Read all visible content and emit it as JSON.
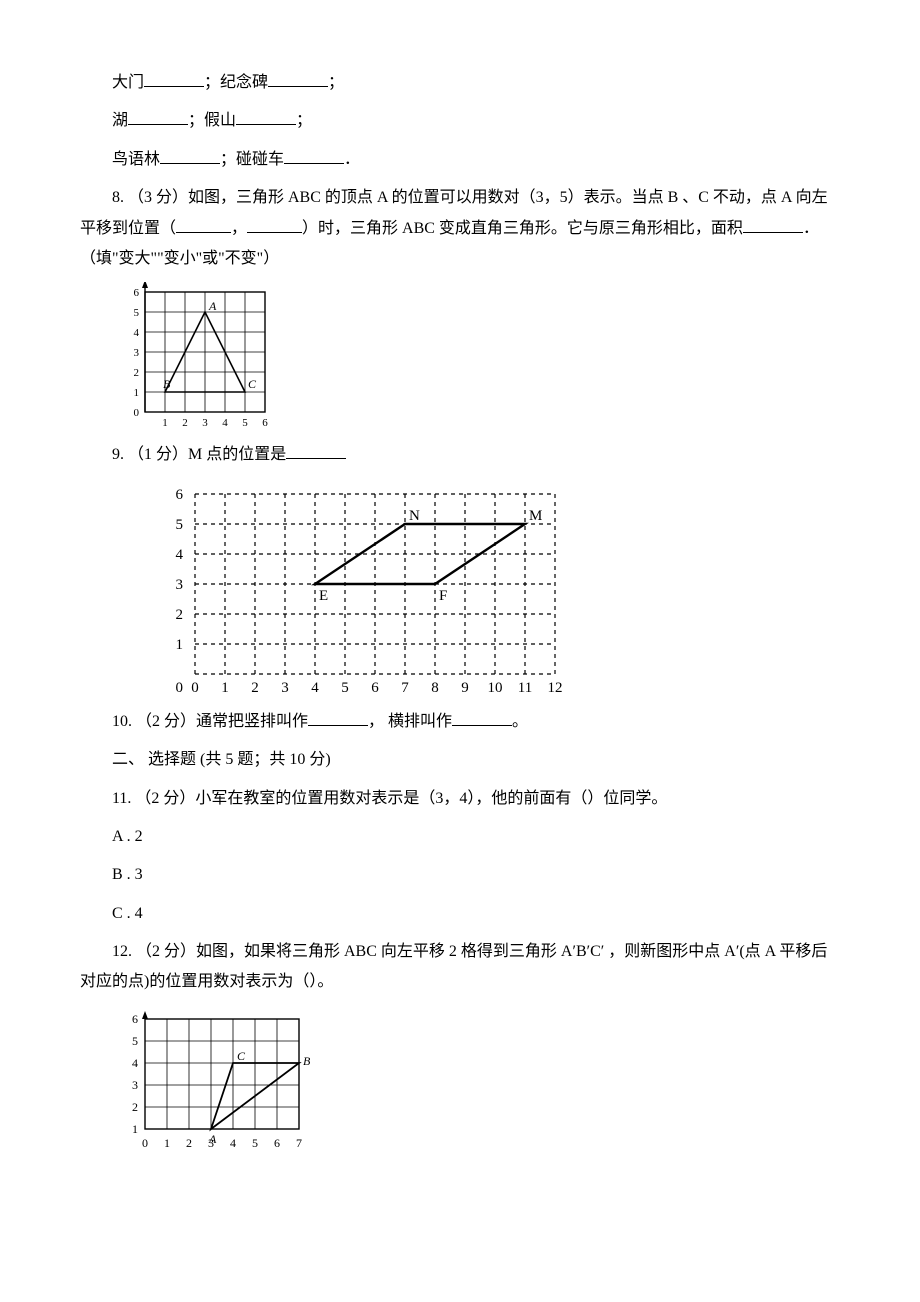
{
  "q7": {
    "line1_a": "大门",
    "line1_b": "纪念碑",
    "line2_a": "湖",
    "line2_b": "假山",
    "line3_a": "鸟语林",
    "line3_b": "碰碰车"
  },
  "q8": {
    "prefix": "8.  （3 分）如图，三角形 ABC 的顶点 A 的位置可以用数对（3，5）表示。当点 B 、C 不动，点 A 向左平移到位置（",
    "mid": "，",
    "suffix1": "）时，三角形 ABC 变成直角三角形。它与原三角形相比，面积",
    "suffix2": "．（填\"变大\"\"变小\"或\"不变\"）",
    "chart": {
      "xmax": 6,
      "ymax": 6,
      "A": [
        3,
        5
      ],
      "B": [
        1,
        1
      ],
      "C": [
        5,
        1
      ],
      "labels": {
        "A": "A",
        "B": "B",
        "C": "C"
      },
      "grid_color": "#000000",
      "xticks": [
        "1",
        "2",
        "3",
        "4",
        "5",
        "6"
      ],
      "yticks": [
        "0",
        "1",
        "2",
        "3",
        "4",
        "5",
        "6"
      ]
    }
  },
  "q9": {
    "text": "9.  （1 分）M 点的位置是",
    "chart": {
      "xmax": 12,
      "ymax": 6,
      "E": [
        4,
        3
      ],
      "F": [
        8,
        3
      ],
      "N": [
        7,
        5
      ],
      "M": [
        11,
        5
      ],
      "labels": {
        "E": "E",
        "F": "F",
        "N": "N",
        "M": "M"
      },
      "xticks": [
        "0",
        "1",
        "2",
        "3",
        "4",
        "5",
        "6",
        "7",
        "8",
        "9",
        "10",
        "11",
        "12"
      ],
      "yticks": [
        "1",
        "2",
        "3",
        "4",
        "5",
        "6"
      ]
    }
  },
  "q10": {
    "a": "10.  （2 分）通常把竖排叫作",
    "b": "， 横排叫作",
    "c": "。"
  },
  "section2": "二、 选择题 (共 5 题；共 10 分)",
  "q11": {
    "stem": "11.  （2 分）小军在教室的位置用数对表示是（3，4），他的前面有（）位同学。",
    "A": "A . 2",
    "B": "B . 3",
    "C": "C . 4"
  },
  "q12": {
    "stem": "12.  （2 分）如图，如果将三角形 ABC 向左平移 2 格得到三角形 A′B′C′ ，则新图形中点 A′(点 A 平移后对应的点)的位置用数对表示为（）。",
    "chart": {
      "xmax": 7,
      "ymax": 6,
      "A": [
        3,
        1
      ],
      "B": [
        7,
        4
      ],
      "C": [
        4,
        4
      ],
      "labels": {
        "A": "A",
        "B": "B",
        "C": "C"
      },
      "xticks": [
        "0",
        "1",
        "2",
        "3",
        "4",
        "5",
        "6",
        "7"
      ],
      "yticks": [
        "1",
        "2",
        "3",
        "4",
        "5",
        "6"
      ]
    }
  }
}
